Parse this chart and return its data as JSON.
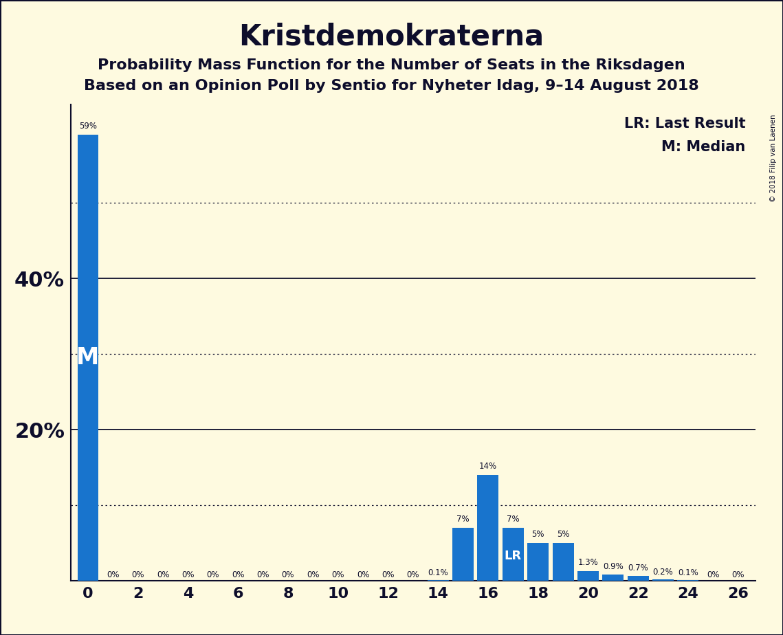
{
  "title": "Kristdemokraterna",
  "subtitle1": "Probability Mass Function for the Number of Seats in the Riksdagen",
  "subtitle2": "Based on an Opinion Poll by Sentio for Nyheter Idag, 9–14 August 2018",
  "copyright": "© 2018 Filip van Laenen",
  "bar_color": "#1874CD",
  "background_color": "#FEFAE0",
  "text_color": "#0d0d2b",
  "seats": [
    0,
    1,
    2,
    3,
    4,
    5,
    6,
    7,
    8,
    9,
    10,
    11,
    12,
    13,
    14,
    15,
    16,
    17,
    18,
    19,
    20,
    21,
    22,
    23,
    24,
    25,
    26
  ],
  "probabilities": [
    59,
    0,
    0,
    0,
    0,
    0,
    0,
    0,
    0,
    0,
    0,
    0,
    0,
    0,
    0.1,
    7,
    14,
    7,
    5,
    5,
    1.3,
    0.9,
    0.7,
    0.2,
    0.1,
    0,
    0
  ],
  "labels": [
    "59%",
    "0%",
    "0%",
    "0%",
    "0%",
    "0%",
    "0%",
    "0%",
    "0%",
    "0%",
    "0%",
    "0%",
    "0%",
    "0%",
    "0.1%",
    "7%",
    "14%",
    "7%",
    "5%",
    "5%",
    "1.3%",
    "0.9%",
    "0.7%",
    "0.2%",
    "0.1%",
    "0%",
    "0%"
  ],
  "median_seat": 0,
  "lr_seat": 17,
  "xtick_positions": [
    0,
    2,
    4,
    6,
    8,
    10,
    12,
    14,
    16,
    18,
    20,
    22,
    24,
    26
  ],
  "dotted_lines": [
    10,
    30,
    50
  ],
  "solid_lines": [
    20,
    40
  ],
  "ylim": [
    0,
    63
  ],
  "legend_lr": "LR: Last Result",
  "legend_m": "M: Median",
  "title_fontsize": 30,
  "subtitle_fontsize": 16,
  "ytick_vals": [
    20,
    40
  ],
  "ytick_labels": [
    "20%",
    "40%"
  ],
  "bar_width": 0.85
}
